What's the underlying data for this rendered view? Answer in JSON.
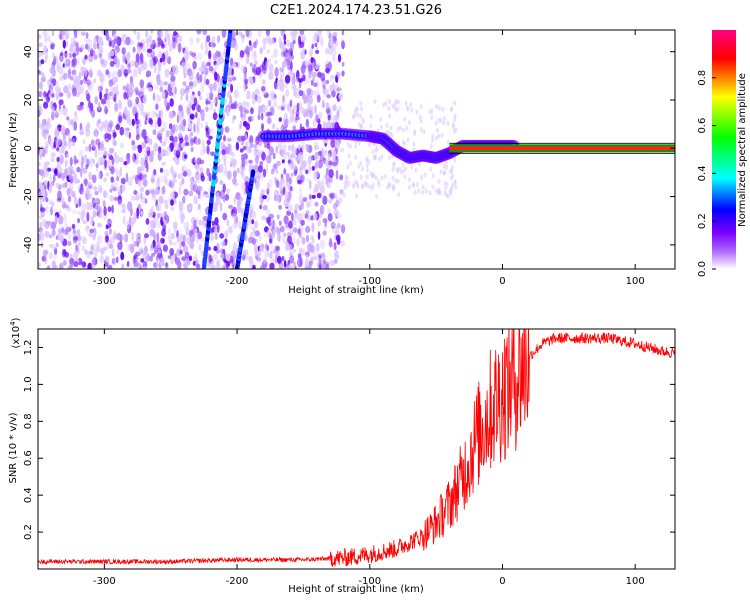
{
  "title": "C2E1.2024.174.23.51.G26",
  "chart_data": [
    {
      "type": "heatmap",
      "xlabel": "Height of straight line (km)",
      "ylabel": "Frequency (Hz)",
      "xlim": [
        -350,
        130
      ],
      "ylim": [
        -50,
        49
      ],
      "x_ticks": [
        -300,
        -200,
        -100,
        0,
        100
      ],
      "y_ticks": [
        -40,
        -20,
        0,
        20,
        40
      ],
      "colorbar": {
        "label": "Normalized spectral amplitude",
        "range": [
          0,
          1
        ],
        "ticks": [
          "0.0",
          "0.2",
          "0.4",
          "0.6",
          "0.8"
        ],
        "colors": [
          "#ffffff",
          "#7b00ff",
          "#0000ff",
          "#00ffff",
          "#00ff00",
          "#ffff00",
          "#ff0000",
          "#ff0080"
        ]
      },
      "features": {
        "carrier_line": {
          "x_start": -40,
          "x_end": 130,
          "frequency": 0
        },
        "signal_track": [
          [
            -180,
            5
          ],
          [
            -160,
            5
          ],
          [
            -140,
            6
          ],
          [
            -120,
            6
          ],
          [
            -100,
            5
          ],
          [
            -90,
            4
          ],
          [
            -80,
            -1
          ],
          [
            -70,
            -4
          ],
          [
            -60,
            -3
          ],
          [
            -50,
            -4
          ],
          [
            -40,
            -2
          ],
          [
            -30,
            1
          ],
          [
            -20,
            1
          ],
          [
            -10,
            1
          ],
          [
            0,
            1
          ],
          [
            10,
            1
          ]
        ],
        "diagonal_lines": [
          {
            "from": [
              -225,
              -50
            ],
            "to": [
              -205,
              49
            ]
          },
          {
            "from": [
              -200,
              -50
            ],
            "to": [
              -188,
              -10
            ]
          }
        ]
      }
    },
    {
      "type": "line",
      "xlabel": "Height of straight line (km)",
      "ylabel": "SNR (10 * v/v)",
      "y_multiplier_label": "(x10",
      "y_multiplier_exp": "4",
      "xlim": [
        -350,
        130
      ],
      "ylim": [
        0,
        1.3
      ],
      "x_ticks": [
        -300,
        -200,
        -100,
        0,
        100
      ],
      "y_ticks": [
        "0.2",
        "0.4",
        "0.6",
        "0.8",
        "1.0",
        "1.2"
      ],
      "color": "#ff0000",
      "series": [
        {
          "x": [
            -350,
            -300,
            -250,
            -200,
            -150,
            -120,
            -100,
            -80,
            -60,
            -50,
            -40,
            -30,
            -20,
            -10,
            0,
            10,
            20,
            30,
            40,
            60,
            80,
            100,
            120,
            130
          ],
          "values": [
            0.04,
            0.04,
            0.04,
            0.05,
            0.05,
            0.06,
            0.08,
            0.11,
            0.18,
            0.25,
            0.35,
            0.5,
            0.7,
            0.85,
            0.95,
            1.05,
            1.15,
            1.22,
            1.25,
            1.25,
            1.25,
            1.22,
            1.18,
            1.17
          ]
        }
      ]
    }
  ]
}
